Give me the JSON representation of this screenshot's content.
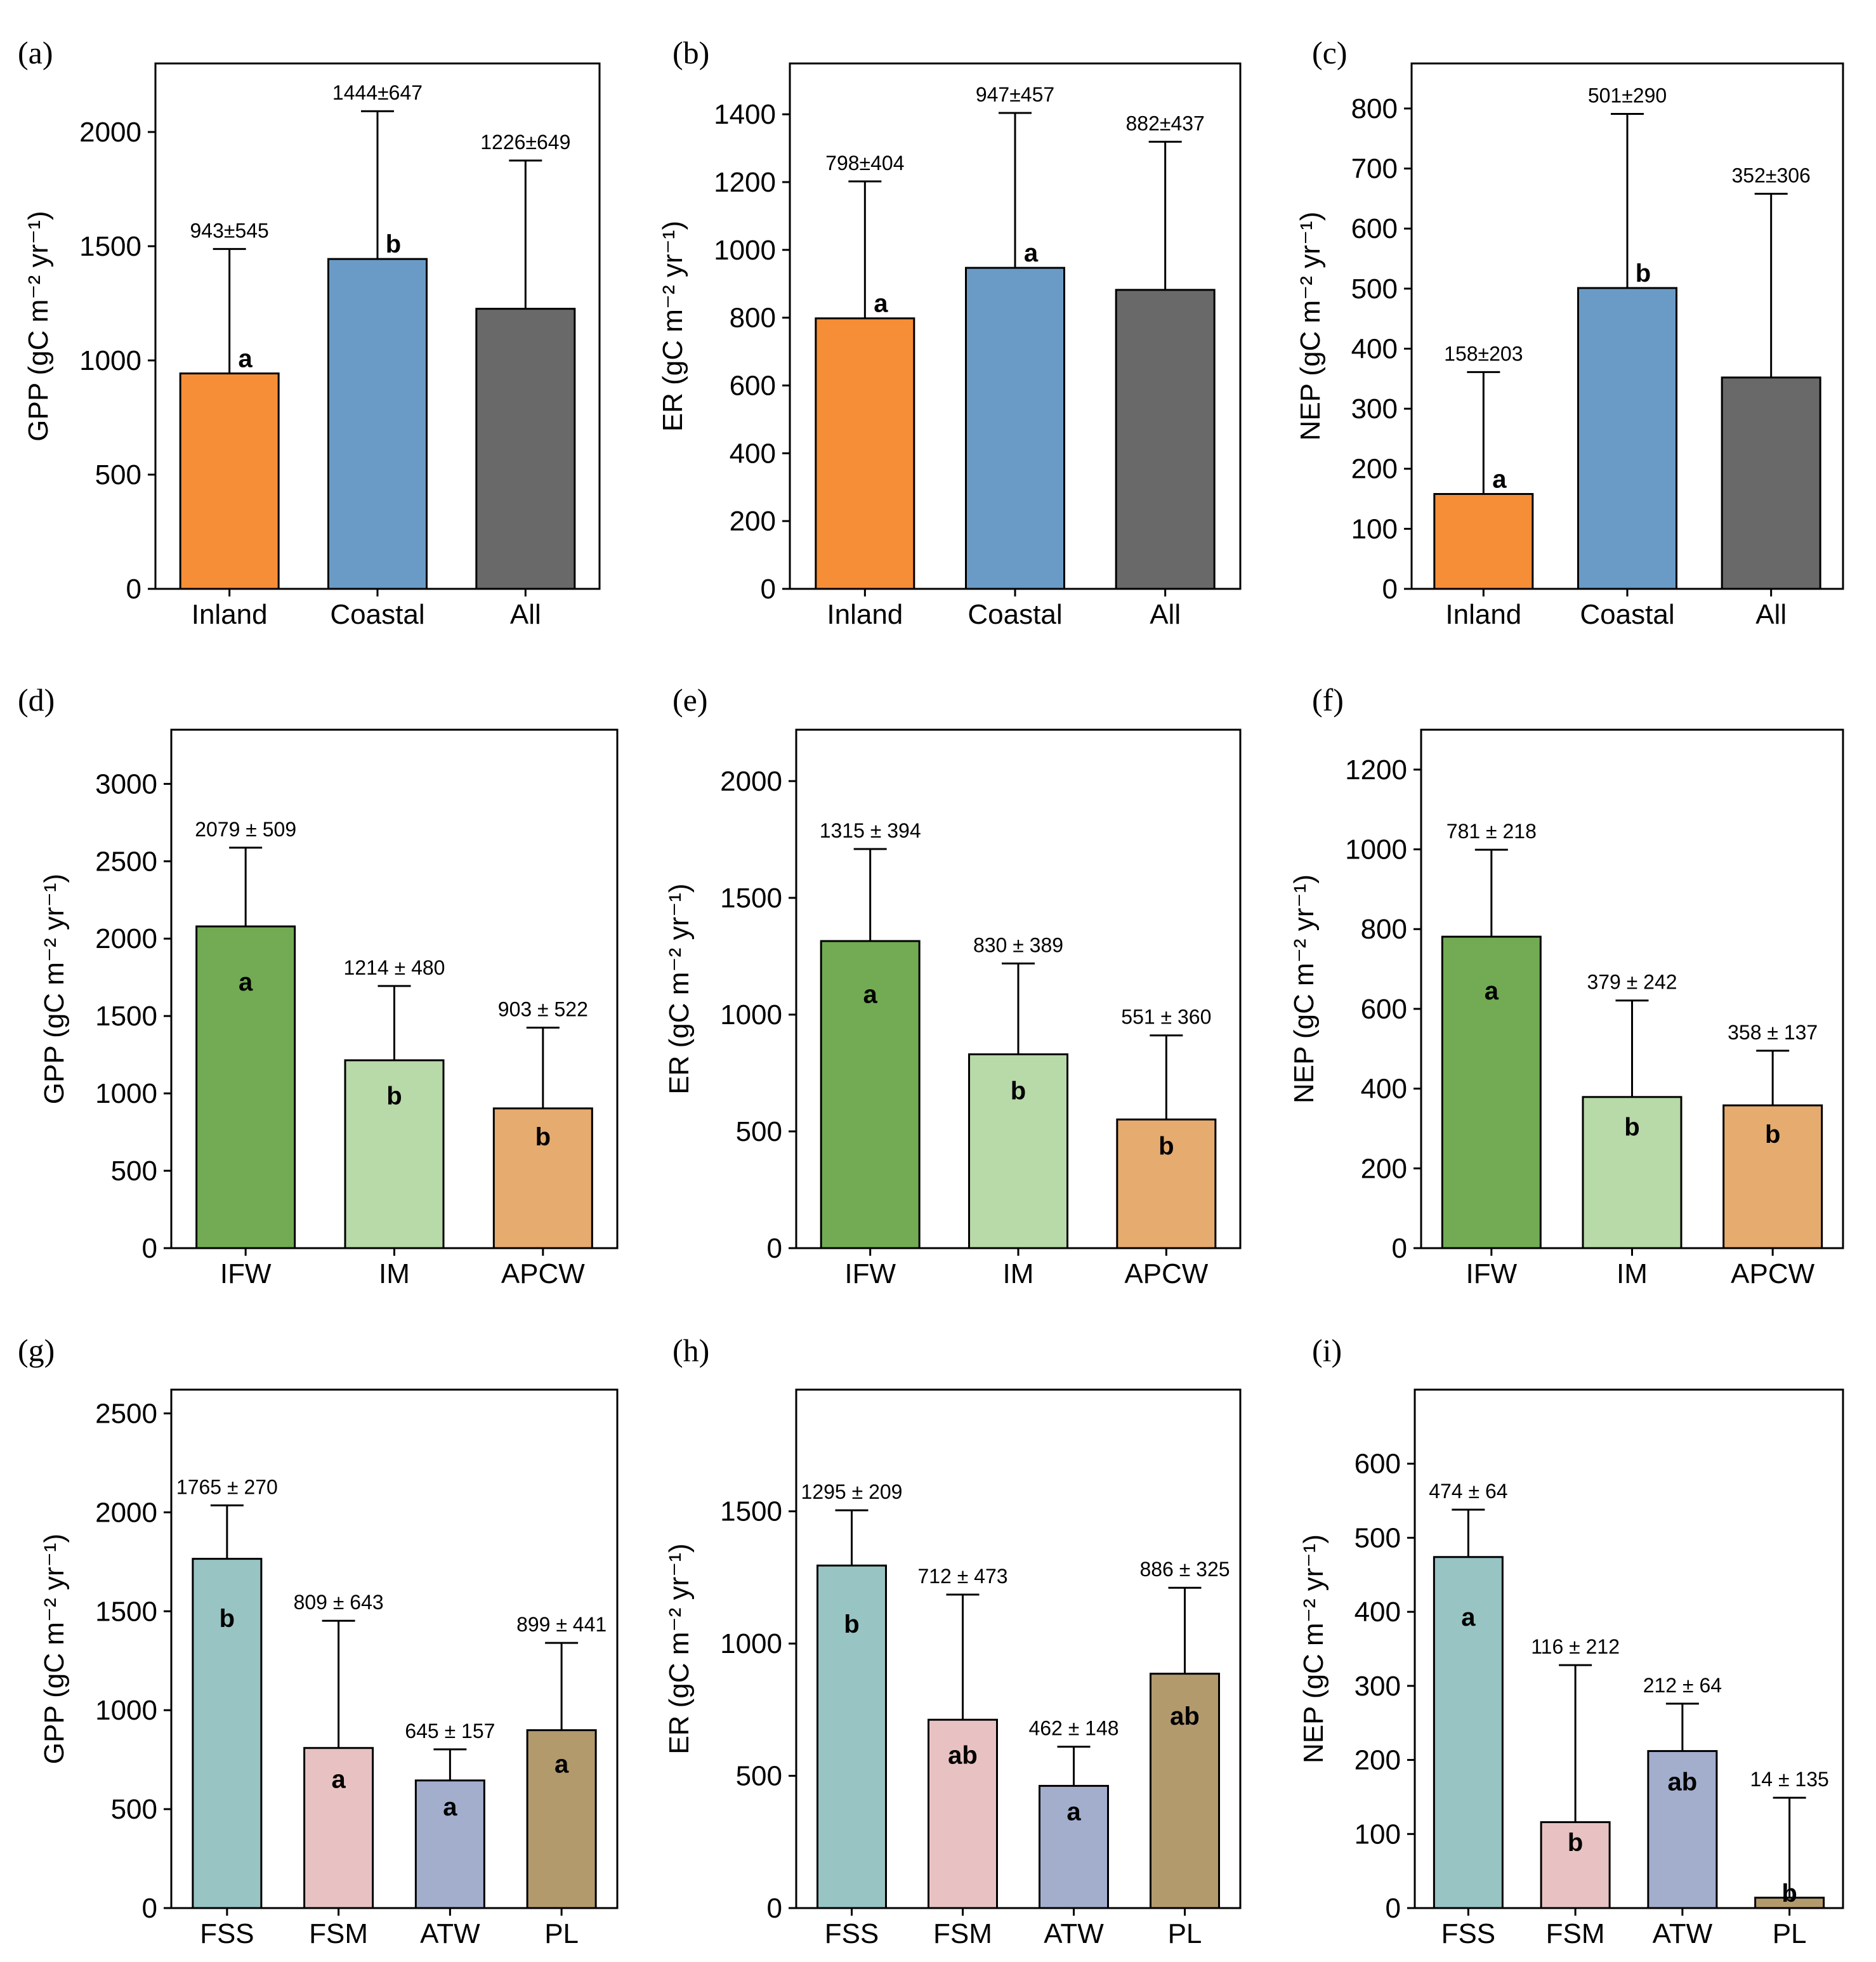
{
  "chart_data": [
    {
      "panel": "(a)",
      "type": "bar",
      "categories": [
        "Inland",
        "Coastal",
        "All"
      ],
      "values": [
        943,
        1444,
        1226
      ],
      "errors": [
        545,
        647,
        649
      ],
      "value_labels": [
        "943±545",
        "1444±647",
        "1226±649"
      ],
      "letters": [
        "a",
        "b",
        ""
      ],
      "ylabel": "GPP (gC m⁻² yr⁻¹)",
      "ylim": [
        0,
        2300
      ],
      "yticks": [
        0,
        500,
        1000,
        1500,
        2000
      ],
      "colors": [
        "#f68e37",
        "#6a9bc6",
        "#696969"
      ]
    },
    {
      "panel": "(b)",
      "type": "bar",
      "categories": [
        "Inland",
        "Coastal",
        "All"
      ],
      "values": [
        798,
        947,
        882
      ],
      "errors": [
        404,
        457,
        437
      ],
      "value_labels": [
        "798±404",
        "947±457",
        "882±437"
      ],
      "letters": [
        "a",
        "a",
        ""
      ],
      "ylabel": "ER (gC m⁻² yr⁻¹)",
      "ylim": [
        0,
        1550
      ],
      "yticks": [
        0,
        200,
        400,
        600,
        800,
        1000,
        1200,
        1400
      ],
      "colors": [
        "#f68e37",
        "#6a9bc6",
        "#696969"
      ]
    },
    {
      "panel": "(c)",
      "type": "bar",
      "categories": [
        "Inland",
        "Coastal",
        "All"
      ],
      "values": [
        158,
        501,
        352
      ],
      "errors": [
        203,
        290,
        306
      ],
      "value_labels": [
        "158±203",
        "501±290",
        "352±306"
      ],
      "letters": [
        "a",
        "b",
        ""
      ],
      "ylabel": "NEP (gC m⁻² yr⁻¹)",
      "ylim": [
        0,
        875
      ],
      "yticks": [
        0,
        100,
        200,
        300,
        400,
        500,
        600,
        700,
        800
      ],
      "colors": [
        "#f68e37",
        "#6a9bc6",
        "#696969"
      ]
    },
    {
      "panel": "(d)",
      "type": "bar",
      "categories": [
        "IFW",
        "IM",
        "APCW"
      ],
      "values": [
        2079,
        1214,
        903
      ],
      "errors": [
        509,
        480,
        522
      ],
      "value_labels": [
        "2079 ± 509",
        "1214 ± 480",
        "903 ± 522"
      ],
      "letters": [
        "a",
        "b",
        "b"
      ],
      "ylabel": "GPP (gC m⁻² yr⁻¹)",
      "ylim": [
        0,
        3350
      ],
      "yticks": [
        0,
        500,
        1000,
        1500,
        2000,
        2500,
        3000
      ],
      "colors": [
        "#72ab53",
        "#b8d9a8",
        "#e6ab6f"
      ]
    },
    {
      "panel": "(e)",
      "type": "bar",
      "categories": [
        "IFW",
        "IM",
        "APCW"
      ],
      "values": [
        1315,
        830,
        551
      ],
      "errors": [
        394,
        389,
        360
      ],
      "value_labels": [
        "1315 ± 394",
        "830 ± 389",
        "551 ± 360"
      ],
      "letters": [
        "a",
        "b",
        "b"
      ],
      "ylabel": "ER (gC m⁻² yr⁻¹)",
      "ylim": [
        0,
        2220
      ],
      "yticks": [
        0,
        500,
        1000,
        1500,
        2000
      ],
      "colors": [
        "#72ab53",
        "#b8d9a8",
        "#e6ab6f"
      ]
    },
    {
      "panel": "(f)",
      "type": "bar",
      "categories": [
        "IFW",
        "IM",
        "APCW"
      ],
      "values": [
        781,
        379,
        358
      ],
      "errors": [
        218,
        242,
        137
      ],
      "value_labels": [
        "781 ± 218",
        "379 ± 242",
        "358 ± 137"
      ],
      "letters": [
        "a",
        "b",
        "b"
      ],
      "ylabel": "NEP (gC m⁻² yr⁻¹)",
      "ylim": [
        0,
        1300
      ],
      "yticks": [
        0,
        200,
        400,
        600,
        800,
        1000,
        1200
      ],
      "colors": [
        "#72ab53",
        "#b8d9a8",
        "#e6ab6f"
      ]
    },
    {
      "panel": "(g)",
      "type": "bar",
      "categories": [
        "FSS",
        "FSM",
        "ATW",
        "PL"
      ],
      "values": [
        1765,
        809,
        645,
        899
      ],
      "errors": [
        270,
        643,
        157,
        441
      ],
      "value_labels": [
        "1765 ± 270",
        "809 ± 643",
        "645 ± 157",
        "899 ± 441"
      ],
      "letters": [
        "b",
        "a",
        "a",
        "a"
      ],
      "ylabel": "GPP (gC m⁻² yr⁻¹)",
      "ylim": [
        0,
        2620
      ],
      "yticks": [
        0,
        500,
        1000,
        1500,
        2000,
        2500
      ],
      "colors": [
        "#98c4c3",
        "#e8c2c2",
        "#a3aecd",
        "#b39a6d"
      ]
    },
    {
      "panel": "(h)",
      "type": "bar",
      "categories": [
        "FSS",
        "FSM",
        "ATW",
        "PL"
      ],
      "values": [
        1295,
        712,
        462,
        886
      ],
      "errors": [
        209,
        473,
        148,
        325
      ],
      "value_labels": [
        "1295 ± 209",
        "712 ± 473",
        "462 ± 148",
        "886 ± 325"
      ],
      "letters": [
        "b",
        "ab",
        "a",
        "ab"
      ],
      "ylabel": "ER (gC m⁻² yr⁻¹)",
      "ylim": [
        0,
        1960
      ],
      "yticks": [
        0,
        500,
        1000,
        1500
      ],
      "colors": [
        "#98c4c3",
        "#e8c2c2",
        "#a3aecd",
        "#b39a6d"
      ]
    },
    {
      "panel": "(i)",
      "type": "bar",
      "categories": [
        "FSS",
        "FSM",
        "ATW",
        "PL"
      ],
      "values": [
        474,
        116,
        212,
        14
      ],
      "errors": [
        64,
        212,
        64,
        135
      ],
      "value_labels": [
        "474 ± 64",
        "116 ± 212",
        "212 ± 64",
        "14 ± 135"
      ],
      "letters": [
        "a",
        "b",
        "ab",
        "b"
      ],
      "ylabel": "NEP (gC m⁻² yr⁻¹)",
      "ylim": [
        0,
        700
      ],
      "yticks": [
        0,
        100,
        200,
        300,
        400,
        500,
        600
      ],
      "colors": [
        "#98c4c3",
        "#e8c2c2",
        "#a3aecd",
        "#b39a6d"
      ]
    }
  ]
}
